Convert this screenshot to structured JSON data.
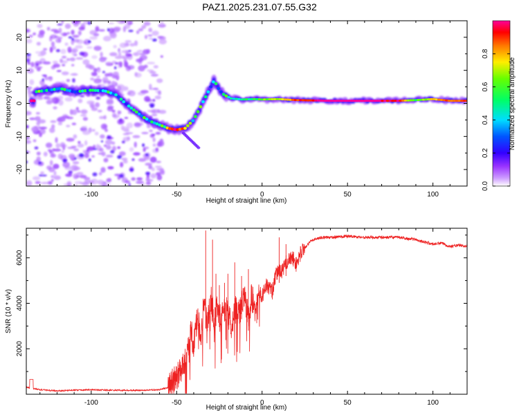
{
  "title": "PAZ1.2025.231.07.55.G32",
  "chart_data": [
    {
      "type": "heatmap",
      "name": "spectrogram",
      "xlabel": "Height of straight line (km)",
      "ylabel": "Frequency (Hz)",
      "xlim": [
        -138,
        120
      ],
      "ylim": [
        -25,
        25
      ],
      "xticks": [
        -100,
        -50,
        0,
        50,
        100
      ],
      "yticks": [
        -20,
        -10,
        0,
        10,
        20
      ],
      "colorbar": {
        "label": "Normalized spectral amplitude",
        "range": [
          0,
          1
        ],
        "ticks": [
          0.0,
          0.2,
          0.4,
          0.6,
          0.8
        ],
        "tick_labels": [
          "0.0",
          "0.2",
          "0.4",
          "0.6",
          "0.8"
        ],
        "colors": [
          "#ffffff",
          "#cc99ff",
          "#8000ff",
          "#0000ff",
          "#00ffff",
          "#00ff00",
          "#ffff00",
          "#ff8000",
          "#ff0000",
          "#ff00ff"
        ]
      },
      "ridge": {
        "x": [
          -133,
          -125,
          -118,
          -110,
          -100,
          -92,
          -85,
          -80,
          -75,
          -70,
          -65,
          -60,
          -55,
          -50,
          -45,
          -40,
          -36,
          -32,
          -28,
          -25,
          -22,
          -18,
          -12,
          -5,
          0,
          10,
          20,
          40,
          60,
          80,
          90,
          100,
          110,
          120
        ],
        "frequency": [
          3.5,
          4,
          4.5,
          3.5,
          4,
          3.8,
          2.5,
          0,
          -2,
          -4,
          -5.5,
          -6.5,
          -7.5,
          -8,
          -7.5,
          -5,
          -1,
          3,
          7,
          4,
          2.5,
          1.5,
          1.2,
          1.3,
          1.2,
          1.3,
          1.0,
          0.8,
          0.8,
          0.8,
          1.0,
          1.3,
          0.8,
          0.8
        ],
        "amplitude": [
          0.45,
          0.35,
          0.4,
          0.3,
          0.35,
          0.3,
          0.25,
          0.3,
          0.3,
          0.35,
          0.4,
          0.45,
          0.5,
          0.9,
          0.5,
          0.35,
          0.35,
          0.35,
          0.3,
          0.3,
          0.4,
          0.45,
          0.5,
          0.55,
          0.6,
          0.7,
          0.85,
          1.0,
          1.0,
          0.9,
          0.55,
          0.75,
          0.85,
          0.85
        ]
      }
    },
    {
      "type": "line",
      "name": "snr",
      "xlabel": "Height of straight line (km)",
      "ylabel": "SNR (10 * v/v)",
      "xlim": [
        -138,
        120
      ],
      "ylim": [
        0,
        7300
      ],
      "xticks": [
        -100,
        -50,
        0,
        50,
        100
      ],
      "yticks": [
        2000,
        4000,
        6000
      ],
      "color": "#ee2222",
      "series": [
        {
          "name": "SNR",
          "x": [
            -138,
            -130,
            -120,
            -110,
            -100,
            -90,
            -80,
            -70,
            -60,
            -55,
            -50,
            -47,
            -44,
            -42,
            -40,
            -38,
            -36,
            -34,
            -32,
            -30,
            -28,
            -26,
            -24,
            -22,
            -20,
            -18,
            -16,
            -14,
            -12,
            -10,
            -8,
            -6,
            -4,
            -2,
            0,
            2,
            4,
            6,
            8,
            10,
            12,
            14,
            16,
            18,
            20,
            22,
            24,
            26,
            28,
            30,
            35,
            40,
            50,
            60,
            70,
            80,
            90,
            95,
            100,
            105,
            110,
            115,
            120
          ],
          "values": [
            300,
            200,
            150,
            180,
            200,
            180,
            170,
            170,
            200,
            300,
            700,
            1200,
            1800,
            2800,
            2200,
            3300,
            2700,
            4000,
            3000,
            4200,
            3300,
            3900,
            3200,
            3800,
            3600,
            3000,
            3800,
            3500,
            3900,
            4200,
            3400,
            4300,
            3700,
            4600,
            4300,
            4800,
            4700,
            4500,
            5200,
            5500,
            5400,
            5800,
            5900,
            6000,
            5700,
            6100,
            6400,
            6500,
            6700,
            6800,
            6900,
            6900,
            6950,
            6900,
            6900,
            6900,
            6800,
            6700,
            6600,
            6650,
            6500,
            6550,
            6500
          ],
          "spikes": [
            {
              "x": -33,
              "value": 7200
            },
            {
              "x": -29,
              "value": 6800
            },
            {
              "x": -27,
              "value": 5300
            },
            {
              "x": -25,
              "value": 4800
            },
            {
              "x": -22,
              "value": 4900
            },
            {
              "x": -20,
              "value": 5300
            },
            {
              "x": -16,
              "value": 5800
            },
            {
              "x": -12,
              "value": 5200
            },
            {
              "x": -8,
              "value": 5500
            },
            {
              "x": 10,
              "value": 6900
            },
            {
              "x": 14,
              "value": 6600
            }
          ]
        }
      ]
    }
  ]
}
